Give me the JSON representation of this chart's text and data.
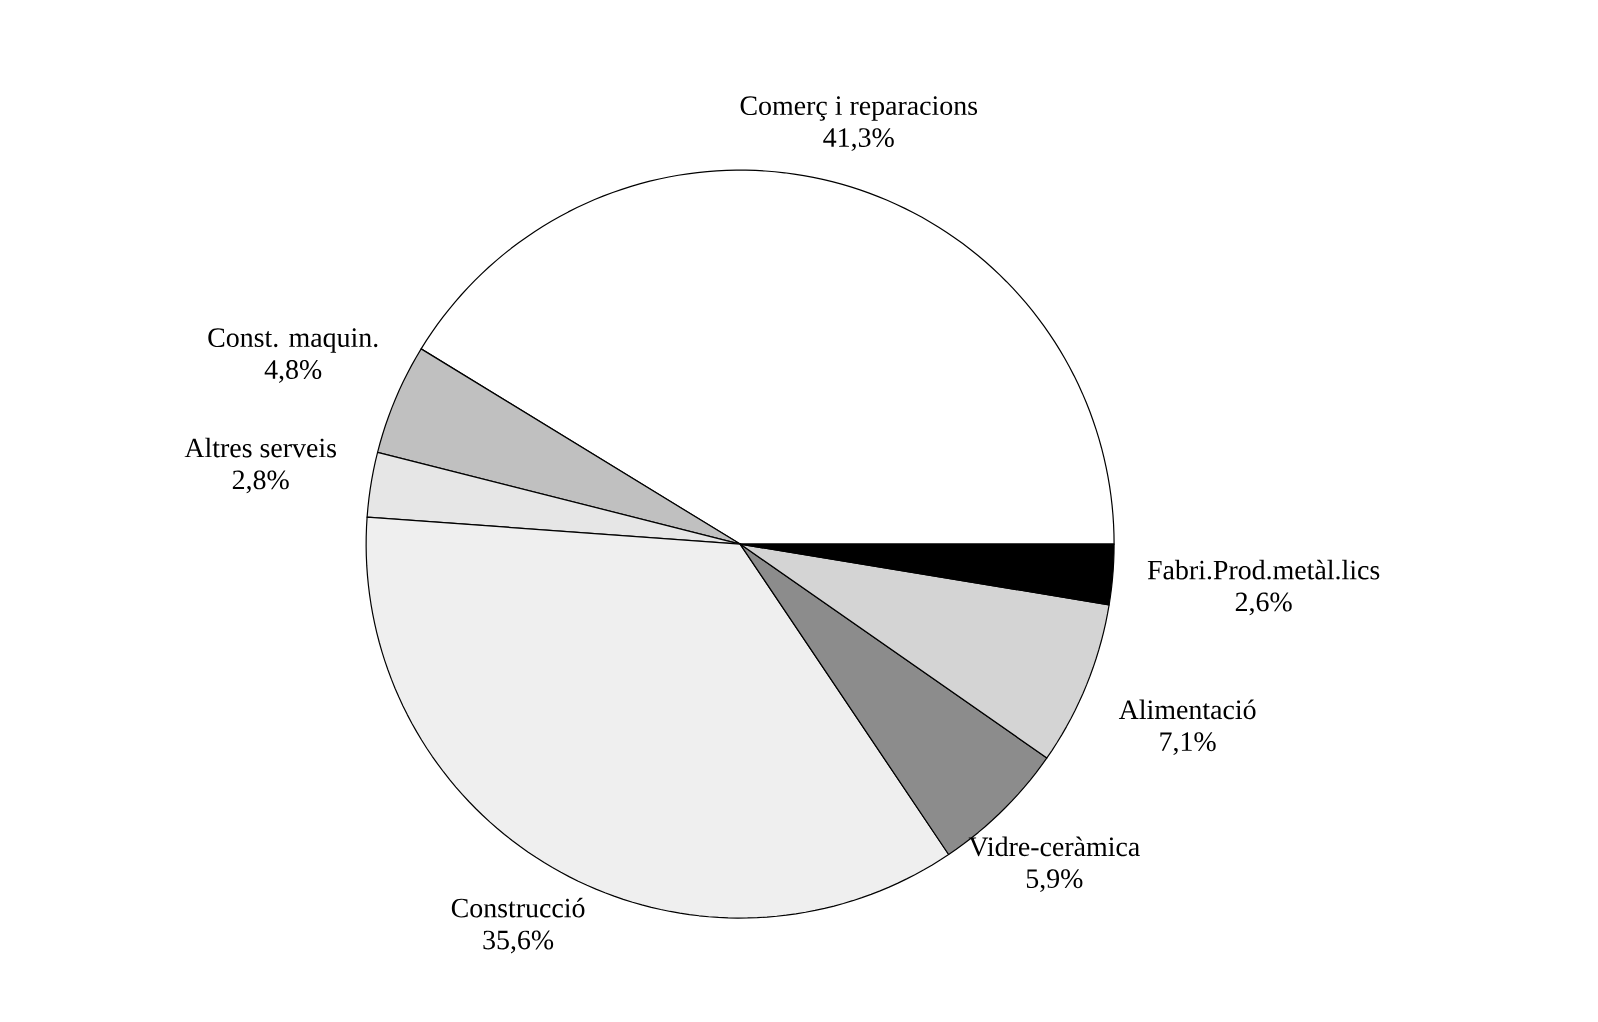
{
  "chart_data": {
    "type": "pie",
    "categories": [
      "Comerç i reparacions",
      "Const. maquin.",
      "Altres serveis",
      "Construcció",
      "Vidre-ceràmica",
      "Alimentació",
      "Fabri.Prod.metàl.lics"
    ],
    "values": [
      41.3,
      4.8,
      2.8,
      35.6,
      5.9,
      7.1,
      2.6
    ],
    "value_labels": [
      "41,3%",
      "4,8%",
      "2,8%",
      "35,6%",
      "5,9%",
      "7,1%",
      "2,6%"
    ],
    "colors": [
      "#ffffff",
      "#c0c0c0",
      "#e6e6e6",
      "#efefef",
      "#8c8c8c",
      "#d4d4d4",
      "#000000"
    ]
  }
}
